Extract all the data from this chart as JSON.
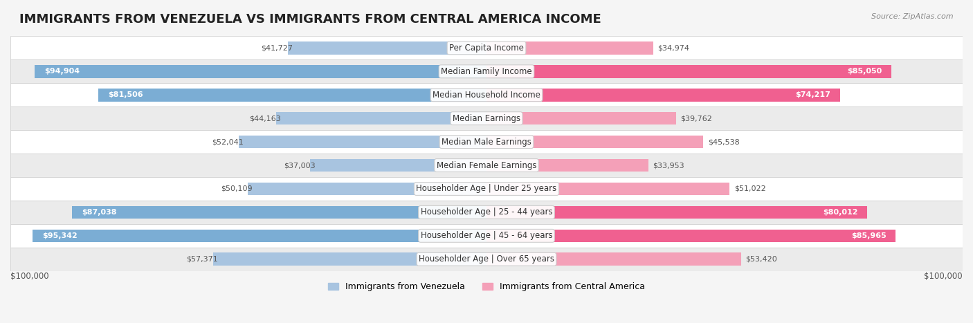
{
  "title": "IMMIGRANTS FROM VENEZUELA VS IMMIGRANTS FROM CENTRAL AMERICA INCOME",
  "source": "Source: ZipAtlas.com",
  "categories": [
    "Per Capita Income",
    "Median Family Income",
    "Median Household Income",
    "Median Earnings",
    "Median Male Earnings",
    "Median Female Earnings",
    "Householder Age | Under 25 years",
    "Householder Age | 25 - 44 years",
    "Householder Age | 45 - 64 years",
    "Householder Age | Over 65 years"
  ],
  "venezuela_values": [
    41727,
    94904,
    81506,
    44163,
    52041,
    37003,
    50109,
    87038,
    95342,
    57371
  ],
  "central_america_values": [
    34974,
    85050,
    74217,
    39762,
    45538,
    33953,
    51022,
    80012,
    85965,
    53420
  ],
  "max_value": 100000,
  "venezuela_color_light": "#a8c4e0",
  "venezuela_color_dark": "#7badd4",
  "central_america_color_light": "#f4a0b8",
  "central_america_color_dark": "#f06090",
  "background_color": "#f5f5f5",
  "row_bg_color": "#ffffff",
  "row_alt_bg_color": "#f0f0f0",
  "legend_venezuela": "Immigrants from Venezuela",
  "legend_central_america": "Immigrants from Central America",
  "xlabel_left": "$100,000",
  "xlabel_right": "$100,000",
  "title_fontsize": 13,
  "label_fontsize": 8.5,
  "value_fontsize": 8,
  "bar_height": 0.55,
  "venezuela_threshold": 80000,
  "central_america_threshold": 70000
}
